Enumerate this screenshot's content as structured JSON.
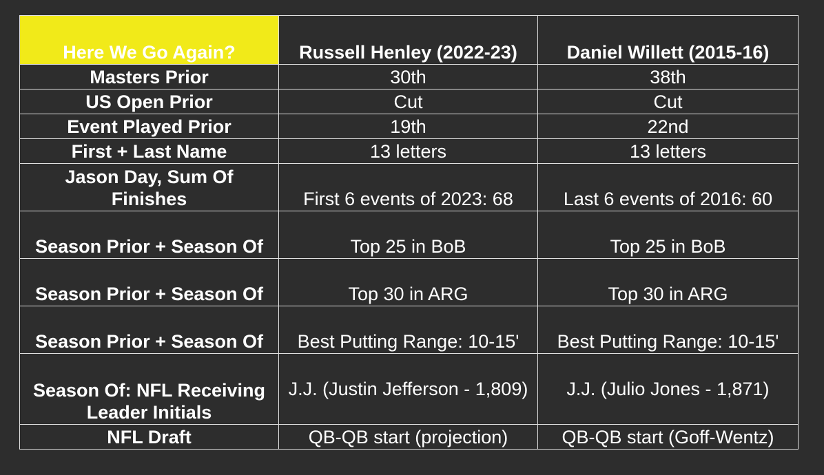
{
  "table": {
    "header": {
      "corner": "Here We Go Again?",
      "col1": "Russell Henley (2022-23)",
      "col2": "Daniel Willett (2015-16)"
    },
    "rows": [
      {
        "label": "Masters Prior",
        "col1": "30th",
        "col2": "38th"
      },
      {
        "label": "US Open Prior",
        "col1": "Cut",
        "col2": "Cut"
      },
      {
        "label": "Event Played Prior",
        "col1": "19th",
        "col2": "22nd"
      },
      {
        "label": "First + Last Name",
        "col1": "13 letters",
        "col2": "13 letters"
      },
      {
        "label": "Jason Day, Sum Of Finishes",
        "col1": "First 6 events of 2023: 68",
        "col2": "Last 6 events of 2016: 60"
      },
      {
        "label": "Season Prior + Season Of",
        "col1": "Top 25 in BoB",
        "col2": "Top 25 in BoB"
      },
      {
        "label": "Season Prior + Season Of",
        "col1": "Top 30 in ARG",
        "col2": "Top 30 in ARG"
      },
      {
        "label": "Season Prior + Season Of",
        "col1": "Best Putting Range: 10-15'",
        "col2": "Best Putting Range: 10-15'"
      },
      {
        "label": "Season Of: NFL Receiving Leader Initials",
        "col1": "J.J. (Justin Jefferson - 1,809)",
        "col2": "J.J. (Julio Jones - 1,871)"
      },
      {
        "label": "NFL Draft",
        "col1": "QB-QB start (projection)",
        "col2": "QB-QB start (Goff-Wentz)"
      }
    ]
  }
}
